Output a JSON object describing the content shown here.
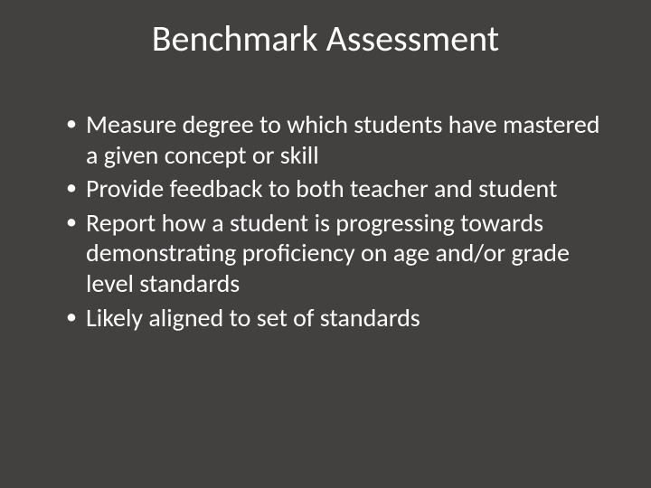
{
  "slide": {
    "background_color": "#434040",
    "text_color": "#ffffff",
    "font_family": "Calibri",
    "title": {
      "text": "Benchmark Assessment",
      "font_size": 40,
      "align": "center"
    },
    "bullets": {
      "font_size": 28,
      "items": [
        "Measure degree to which students have mastered a given concept or skill",
        "Provide feedback to both teacher and student",
        "Report how a student is progressing towards demonstrating proficiency on age and/or grade level standards",
        "Likely aligned to set of standards"
      ]
    }
  }
}
